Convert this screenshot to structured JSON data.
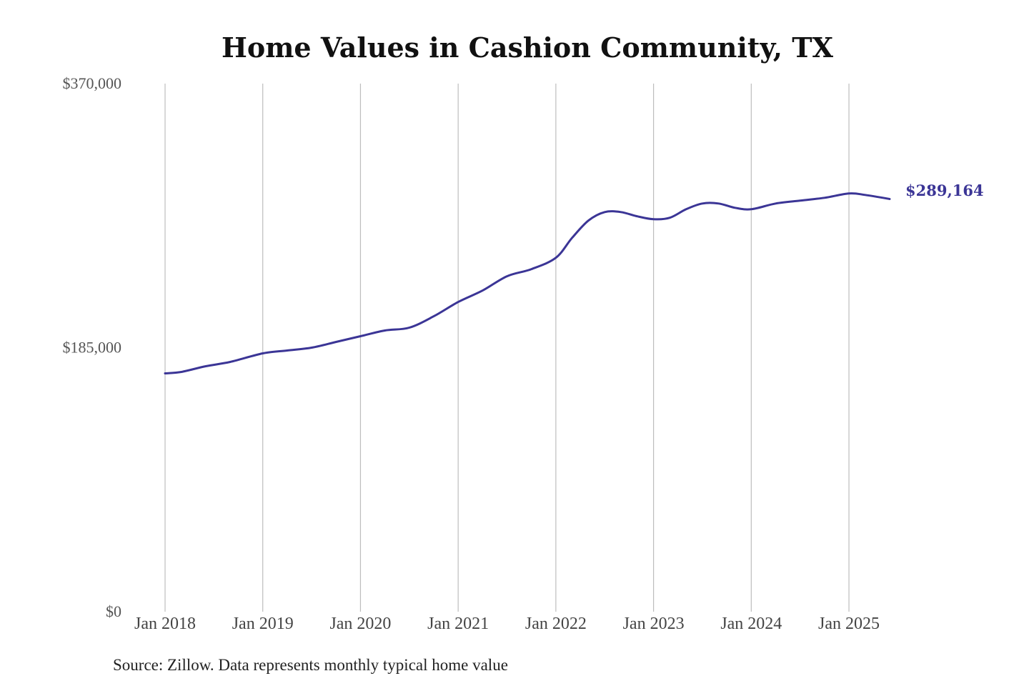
{
  "chart_data": {
    "type": "line",
    "title": "Home Values in Cashion Community, TX",
    "xlabel": "",
    "ylabel": "",
    "ylim": [
      0,
      370000
    ],
    "xlim": [
      "2018-01",
      "2025-06"
    ],
    "y_ticks": [
      {
        "value": 0,
        "label": "$0"
      },
      {
        "value": 185000,
        "label": "$185,000"
      },
      {
        "value": 370000,
        "label": "$370,000"
      }
    ],
    "x_ticks": [
      {
        "date": "2018-01",
        "label": "Jan 2018"
      },
      {
        "date": "2019-01",
        "label": "Jan 2019"
      },
      {
        "date": "2020-01",
        "label": "Jan 2020"
      },
      {
        "date": "2021-01",
        "label": "Jan 2021"
      },
      {
        "date": "2022-01",
        "label": "Jan 2022"
      },
      {
        "date": "2023-01",
        "label": "Jan 2023"
      },
      {
        "date": "2024-01",
        "label": "Jan 2024"
      },
      {
        "date": "2025-01",
        "label": "Jan 2025"
      }
    ],
    "grid": "vertical",
    "series": [
      {
        "color": "#3b3596",
        "points": [
          {
            "x": "2018-01",
            "y": 167000
          },
          {
            "x": "2018-03",
            "y": 168000
          },
          {
            "x": "2018-06",
            "y": 172000
          },
          {
            "x": "2018-09",
            "y": 175000
          },
          {
            "x": "2019-01",
            "y": 181000
          },
          {
            "x": "2019-04",
            "y": 183000
          },
          {
            "x": "2019-07",
            "y": 185000
          },
          {
            "x": "2019-10",
            "y": 189000
          },
          {
            "x": "2020-01",
            "y": 193000
          },
          {
            "x": "2020-04",
            "y": 197000
          },
          {
            "x": "2020-07",
            "y": 199000
          },
          {
            "x": "2020-10",
            "y": 207000
          },
          {
            "x": "2021-01",
            "y": 217000
          },
          {
            "x": "2021-04",
            "y": 225000
          },
          {
            "x": "2021-07",
            "y": 235000
          },
          {
            "x": "2021-10",
            "y": 240000
          },
          {
            "x": "2022-01",
            "y": 248000
          },
          {
            "x": "2022-03",
            "y": 262000
          },
          {
            "x": "2022-05",
            "y": 274000
          },
          {
            "x": "2022-07",
            "y": 280000
          },
          {
            "x": "2022-09",
            "y": 280000
          },
          {
            "x": "2022-11",
            "y": 277000
          },
          {
            "x": "2023-01",
            "y": 275000
          },
          {
            "x": "2023-03",
            "y": 276000
          },
          {
            "x": "2023-05",
            "y": 282000
          },
          {
            "x": "2023-07",
            "y": 286000
          },
          {
            "x": "2023-09",
            "y": 286000
          },
          {
            "x": "2023-11",
            "y": 283000
          },
          {
            "x": "2024-01",
            "y": 282000
          },
          {
            "x": "2024-04",
            "y": 286000
          },
          {
            "x": "2024-07",
            "y": 288000
          },
          {
            "x": "2024-10",
            "y": 290000
          },
          {
            "x": "2025-01",
            "y": 293000
          },
          {
            "x": "2025-03",
            "y": 292000
          },
          {
            "x": "2025-06",
            "y": 289164
          }
        ],
        "end_label": "$289,164"
      }
    ]
  },
  "source_note": "Source: Zillow. Data represents monthly typical home value"
}
